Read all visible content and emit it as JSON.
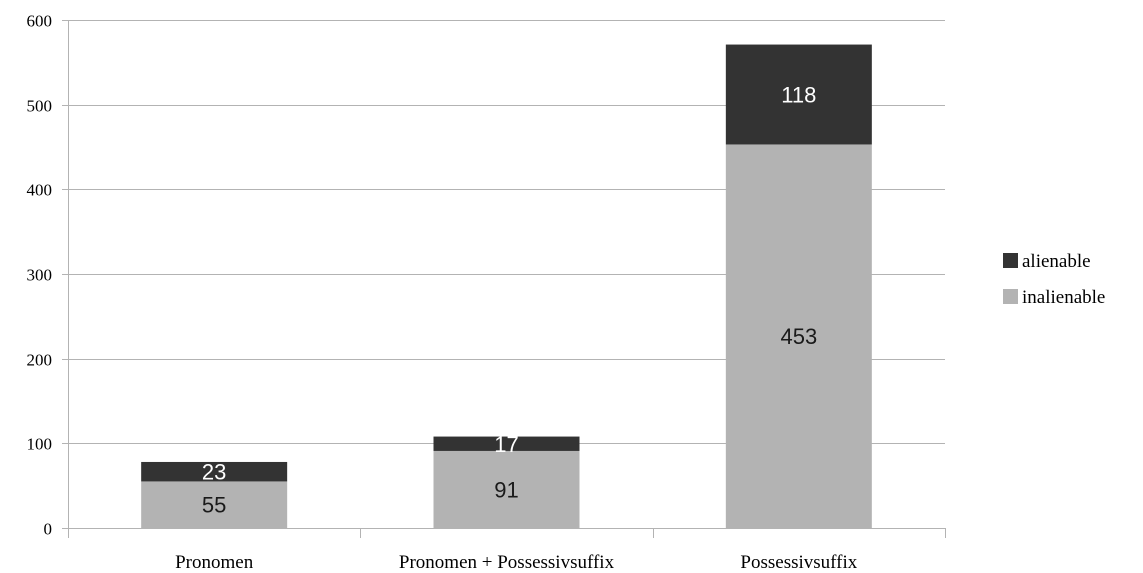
{
  "chart_data": {
    "type": "bar",
    "stacked": true,
    "categories": [
      "Pronomen",
      "Pronomen + Possessivsuffix",
      "Possessivsuffix"
    ],
    "series": [
      {
        "name": "inalienable",
        "values": [
          55,
          91,
          453
        ],
        "color": "#b3b3b3",
        "label_color": "#1a1a1a"
      },
      {
        "name": "alienable",
        "values": [
          23,
          17,
          118
        ],
        "color": "#333333",
        "label_color": "#ffffff"
      }
    ],
    "ylim": [
      0,
      600
    ],
    "yticks": [
      0,
      100,
      200,
      300,
      400,
      500,
      600
    ],
    "grid": true,
    "legend_position": "right",
    "title": "",
    "xlabel": "",
    "ylabel": ""
  }
}
